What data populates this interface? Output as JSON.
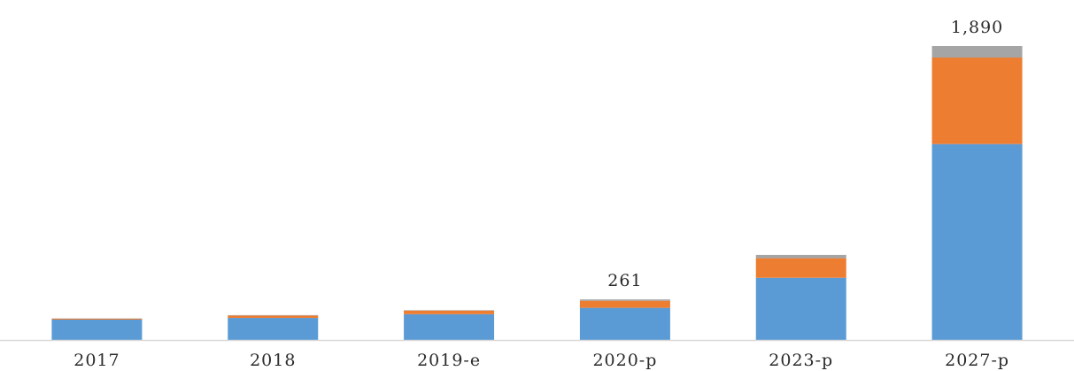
{
  "chart_data": {
    "type": "bar",
    "stacked": true,
    "categories": [
      "2017",
      "2018",
      "2019-e",
      "2020-p",
      "2023-p",
      "2027-p"
    ],
    "series": [
      {
        "values": [
          131,
          142,
          166,
          207,
          400,
          1260
        ]
      },
      {
        "values": [
          6,
          15,
          23,
          45,
          126,
          556
        ]
      },
      {
        "values": [
          2,
          3,
          3,
          9,
          21,
          74
        ]
      }
    ],
    "data_labels": [
      "",
      "",
      "",
      "261",
      "",
      "1,890"
    ],
    "ylim": [
      0,
      1890
    ],
    "grid": false,
    "legend": false,
    "colors": [
      "#5b9bd5",
      "#ed7d31",
      "#a5a5a5"
    ],
    "axis_color": "#d9d9d9"
  }
}
